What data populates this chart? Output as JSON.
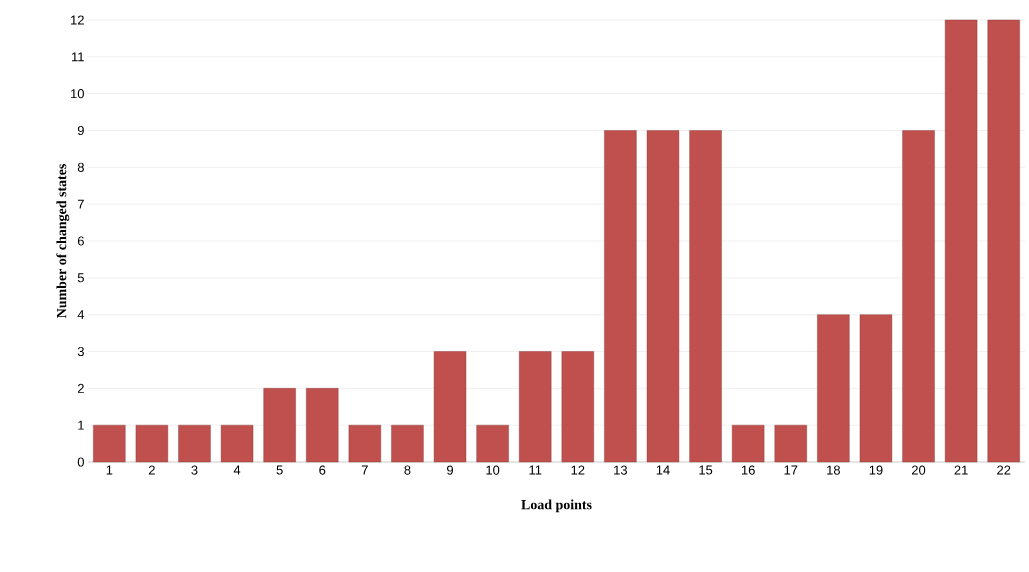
{
  "chart_data": {
    "type": "bar",
    "xlabel": "Load points",
    "ylabel": "Number of changed states",
    "categories": [
      "1",
      "2",
      "3",
      "4",
      "5",
      "6",
      "7",
      "8",
      "9",
      "10",
      "11",
      "12",
      "13",
      "14",
      "15",
      "16",
      "17",
      "18",
      "19",
      "20",
      "21",
      "22"
    ],
    "values": [
      1,
      1,
      1,
      1,
      2,
      2,
      1,
      1,
      3,
      1,
      3,
      3,
      9,
      9,
      9,
      1,
      1,
      4,
      4,
      9,
      12,
      12
    ],
    "color": "#c0504d",
    "ylim": [
      0,
      12
    ],
    "yticks": [
      0,
      1,
      2,
      3,
      4,
      5,
      6,
      7,
      8,
      9,
      10,
      11,
      12
    ],
    "grid": "y"
  }
}
